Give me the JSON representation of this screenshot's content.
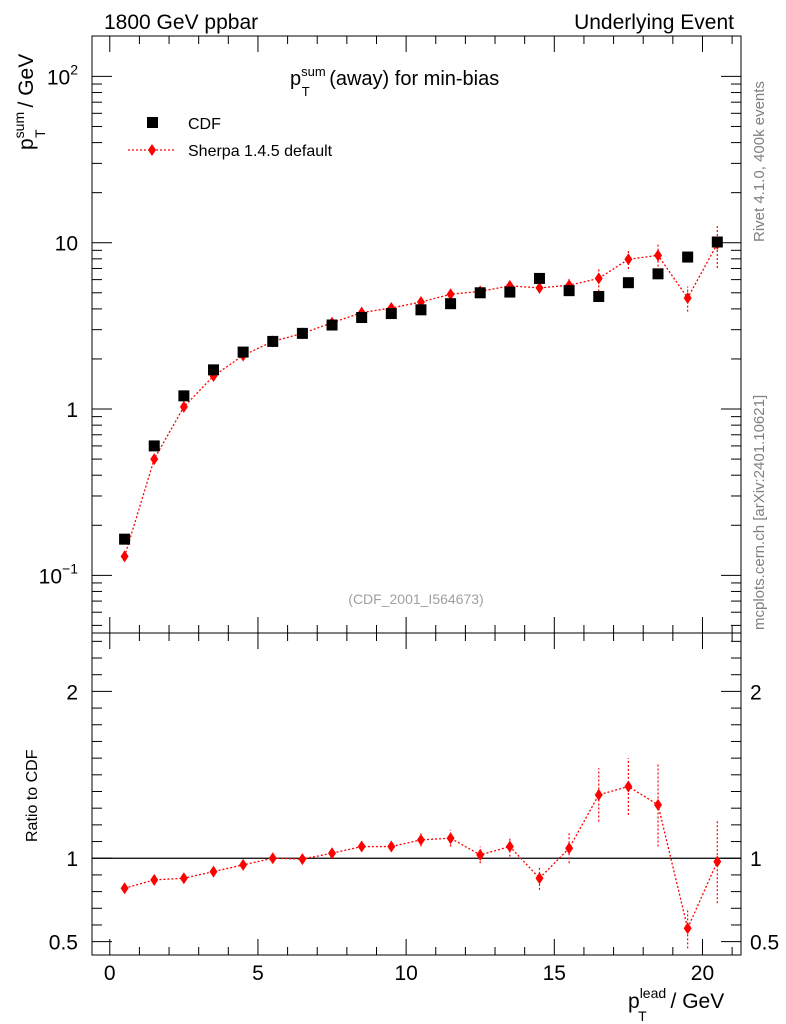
{
  "header": {
    "left": "1800 GeV ppbar",
    "right": "Underlying Event"
  },
  "side_text": {
    "rivet": "Rivet 4.1.0,  400k events",
    "mcplots": "mcplots.cern.ch [arXiv:2401.10621]"
  },
  "chart_data": {
    "type": "scatter",
    "title_main": "p",
    "title_sup": "sum",
    "title_sub": "T",
    "title_rest": " (away) for min-bias",
    "watermark": "(CDF_2001_I564673)",
    "ylabel": {
      "main": "p",
      "sup": "sum",
      "sub": "T",
      "rest": " / GeV"
    },
    "xlabel": {
      "main": "p",
      "sup": "lead",
      "sub": "T",
      "rest": " / GeV"
    },
    "ratio_ylabel": "Ratio to CDF",
    "xlim": [
      -0.6,
      21.3
    ],
    "ylim": [
      0.045,
      175
    ],
    "ratio_ylim": [
      0.42,
      2.35
    ],
    "x_ticks": [
      0,
      5,
      10,
      15,
      20
    ],
    "x_tick_labels": [
      "0",
      "5",
      "10",
      "15",
      "20"
    ],
    "y_ticks": [
      0.1,
      1,
      10,
      100
    ],
    "y_tick_labels": [
      {
        "base": "10",
        "exp": "−1"
      },
      {
        "base": "1",
        "exp": ""
      },
      {
        "base": "10",
        "exp": ""
      },
      {
        "base": "10",
        "exp": "2"
      }
    ],
    "ratio_ticks": [
      0.5,
      1,
      2
    ],
    "ratio_tick_labels": [
      "0.5",
      "1",
      "2"
    ],
    "legend": [
      {
        "name": "CDF",
        "marker": "square",
        "color": "#000000"
      },
      {
        "name": "Sherpa 1.4.5 default",
        "marker": "diamond",
        "color": "#ff0000"
      }
    ],
    "series": [
      {
        "name": "CDF",
        "x": [
          0.5,
          1.5,
          2.5,
          3.5,
          4.5,
          5.5,
          6.5,
          7.5,
          8.5,
          9.5,
          10.5,
          11.5,
          12.5,
          13.5,
          14.5,
          15.5,
          16.5,
          17.5,
          18.5,
          19.5,
          20.5
        ],
        "y": [
          0.165,
          0.6,
          1.2,
          1.72,
          2.2,
          2.55,
          2.85,
          3.2,
          3.55,
          3.75,
          3.95,
          4.3,
          5.0,
          5.05,
          6.1,
          5.15,
          4.75,
          5.75,
          6.5,
          8.2,
          10.1
        ]
      },
      {
        "name": "Sherpa 1.4.5 default",
        "x": [
          0.5,
          1.5,
          2.5,
          3.5,
          4.5,
          5.5,
          6.5,
          7.5,
          8.5,
          9.5,
          10.5,
          11.5,
          12.5,
          13.5,
          14.5,
          15.5,
          16.5,
          17.5,
          18.5,
          19.5,
          20.5
        ],
        "y": [
          0.13,
          0.5,
          1.03,
          1.58,
          2.1,
          2.55,
          2.85,
          3.3,
          3.8,
          4.05,
          4.4,
          4.9,
          5.1,
          5.5,
          5.35,
          5.55,
          6.1,
          7.95,
          8.4,
          4.65,
          9.85
        ],
        "y_err": [
          0.004,
          0.01,
          0.015,
          0.02,
          0.03,
          0.03,
          0.04,
          0.05,
          0.06,
          0.07,
          0.12,
          0.15,
          0.3,
          0.3,
          0.4,
          0.5,
          1.0,
          1.0,
          1.6,
          0.8,
          2.8
        ]
      }
    ],
    "ratio": {
      "x": [
        0.5,
        1.5,
        2.5,
        3.5,
        4.5,
        5.5,
        6.5,
        7.5,
        8.5,
        9.5,
        10.5,
        11.5,
        12.5,
        13.5,
        14.5,
        15.5,
        16.5,
        17.5,
        18.5,
        19.5,
        20.5
      ],
      "y": [
        0.82,
        0.87,
        0.88,
        0.92,
        0.96,
        1.0,
        0.995,
        1.03,
        1.07,
        1.07,
        1.11,
        1.12,
        1.02,
        1.07,
        0.88,
        1.06,
        1.38,
        1.43,
        1.32,
        0.58,
        0.98
      ],
      "y_err": [
        0.02,
        0.02,
        0.02,
        0.02,
        0.02,
        0.015,
        0.015,
        0.02,
        0.025,
        0.03,
        0.04,
        0.05,
        0.05,
        0.06,
        0.07,
        0.09,
        0.16,
        0.17,
        0.25,
        0.12,
        0.25
      ]
    }
  }
}
